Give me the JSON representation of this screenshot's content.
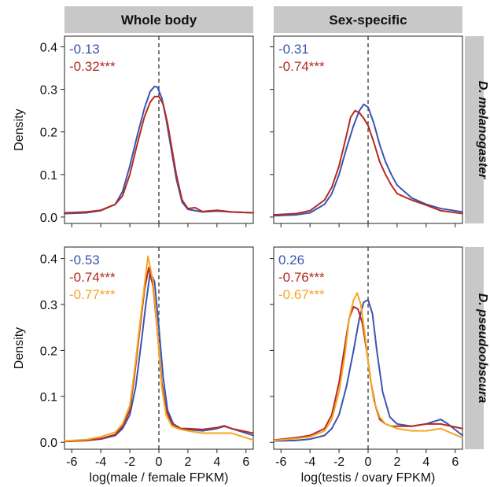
{
  "colors": {
    "strip_fill": "#c8c8c8",
    "blue": "#3a55b0",
    "red": "#b52a1f",
    "orange": "#f5a623",
    "zero_line": "#333333"
  },
  "column_strips": [
    "Whole body",
    "Sex-specific"
  ],
  "row_strips": [
    "D. melanogaster",
    "D. pseudoobscura"
  ],
  "xlabels": [
    "log(male / female FPKM)",
    "log(testis / ovary FPKM)"
  ],
  "ylabel": "Density",
  "chart_data": [
    {
      "type": "line",
      "panel": "D. melanogaster / Whole body",
      "xlim": [
        -6.5,
        6.5
      ],
      "ylim": [
        -0.015,
        0.425
      ],
      "xticks": [
        -6,
        -4,
        -2,
        0,
        2,
        4,
        6
      ],
      "yticks": [
        0.0,
        0.1,
        0.2,
        0.3,
        0.4
      ],
      "vline_x": 0,
      "annotations": [
        {
          "text": "-0.13",
          "color": "#3a55b0"
        },
        {
          "text": "-0.32***",
          "color": "#b52a1f"
        }
      ],
      "series": [
        {
          "color": "#3a55b0",
          "x": [
            -6.5,
            -5,
            -4,
            -3,
            -2.5,
            -2,
            -1.5,
            -1,
            -0.6,
            -0.3,
            -0.1,
            0.2,
            0.5,
            0.8,
            1.2,
            1.6,
            2,
            2.5,
            3,
            4,
            5,
            6.5
          ],
          "y": [
            0.008,
            0.01,
            0.015,
            0.03,
            0.06,
            0.12,
            0.19,
            0.255,
            0.295,
            0.307,
            0.305,
            0.28,
            0.23,
            0.17,
            0.09,
            0.035,
            0.018,
            0.015,
            0.012,
            0.014,
            0.012,
            0.01
          ]
        },
        {
          "color": "#b52a1f",
          "x": [
            -6.5,
            -5,
            -4,
            -3,
            -2.5,
            -2,
            -1.5,
            -1,
            -0.6,
            -0.3,
            0,
            0.3,
            0.6,
            0.9,
            1.2,
            1.6,
            2,
            2.5,
            3,
            4,
            5,
            6.5
          ],
          "y": [
            0.01,
            0.012,
            0.016,
            0.03,
            0.05,
            0.1,
            0.17,
            0.235,
            0.27,
            0.283,
            0.283,
            0.265,
            0.22,
            0.16,
            0.1,
            0.04,
            0.02,
            0.022,
            0.013,
            0.016,
            0.012,
            0.01
          ]
        }
      ]
    },
    {
      "type": "line",
      "panel": "D. melanogaster / Sex-specific",
      "xlim": [
        -6.5,
        6.5
      ],
      "ylim": [
        -0.015,
        0.425
      ],
      "xticks": [
        -6,
        -4,
        -2,
        0,
        2,
        4,
        6
      ],
      "yticks": [
        0.0,
        0.1,
        0.2,
        0.3,
        0.4
      ],
      "vline_x": 0,
      "annotations": [
        {
          "text": "-0.31",
          "color": "#3a55b0"
        },
        {
          "text": "-0.74***",
          "color": "#b52a1f"
        }
      ],
      "series": [
        {
          "color": "#3a55b0",
          "x": [
            -6.5,
            -5,
            -4,
            -3,
            -2.5,
            -2,
            -1.5,
            -1,
            -0.6,
            -0.3,
            0,
            0.4,
            0.8,
            1.2,
            1.6,
            2,
            3,
            4,
            5,
            6.5
          ],
          "y": [
            0.003,
            0.005,
            0.01,
            0.03,
            0.055,
            0.1,
            0.16,
            0.215,
            0.25,
            0.265,
            0.258,
            0.22,
            0.17,
            0.13,
            0.1,
            0.075,
            0.045,
            0.03,
            0.02,
            0.012
          ]
        },
        {
          "color": "#b52a1f",
          "x": [
            -6.5,
            -5,
            -4,
            -3,
            -2.5,
            -2,
            -1.5,
            -1.2,
            -0.9,
            -0.6,
            -0.3,
            0,
            0.4,
            0.8,
            1.2,
            1.6,
            2,
            3,
            4,
            5,
            6.5
          ],
          "y": [
            0.005,
            0.008,
            0.015,
            0.04,
            0.07,
            0.12,
            0.19,
            0.235,
            0.25,
            0.245,
            0.232,
            0.215,
            0.175,
            0.13,
            0.1,
            0.075,
            0.055,
            0.04,
            0.028,
            0.015,
            0.008
          ]
        }
      ]
    },
    {
      "type": "line",
      "panel": "D. pseudoobscura / Whole body",
      "xlim": [
        -6.5,
        6.5
      ],
      "ylim": [
        -0.015,
        0.425
      ],
      "xticks": [
        -6,
        -4,
        -2,
        0,
        2,
        4,
        6
      ],
      "yticks": [
        0.0,
        0.1,
        0.2,
        0.3,
        0.4
      ],
      "vline_x": 0,
      "annotations": [
        {
          "text": "-0.53",
          "color": "#3a55b0"
        },
        {
          "text": "-0.74***",
          "color": "#b52a1f"
        },
        {
          "text": "-0.77***",
          "color": "#f5a623"
        }
      ],
      "series": [
        {
          "color": "#3a55b0",
          "x": [
            -6.5,
            -5,
            -4,
            -3,
            -2.5,
            -2,
            -1.6,
            -1.2,
            -0.9,
            -0.6,
            -0.3,
            0,
            0.3,
            0.6,
            1,
            1.5,
            2,
            3,
            4,
            4.5,
            5,
            6.5
          ],
          "y": [
            0.002,
            0.004,
            0.007,
            0.015,
            0.03,
            0.06,
            0.12,
            0.22,
            0.3,
            0.37,
            0.35,
            0.25,
            0.14,
            0.07,
            0.04,
            0.03,
            0.028,
            0.025,
            0.03,
            0.035,
            0.03,
            0.015
          ]
        },
        {
          "color": "#b52a1f",
          "x": [
            -6.5,
            -5,
            -4,
            -3,
            -2.5,
            -2,
            -1.7,
            -1.3,
            -1,
            -0.7,
            -0.4,
            -0.1,
            0.2,
            0.5,
            0.9,
            1.5,
            2,
            3,
            4,
            4.5,
            5,
            6.5
          ],
          "y": [
            0.002,
            0.004,
            0.008,
            0.017,
            0.035,
            0.07,
            0.14,
            0.25,
            0.33,
            0.38,
            0.34,
            0.24,
            0.13,
            0.07,
            0.04,
            0.03,
            0.03,
            0.028,
            0.032,
            0.036,
            0.03,
            0.02
          ]
        },
        {
          "color": "#f5a623",
          "x": [
            -6.5,
            -5,
            -4,
            -3,
            -2.5,
            -2,
            -1.7,
            -1.3,
            -1,
            -0.75,
            -0.4,
            -0.1,
            0.2,
            0.5,
            0.9,
            1.5,
            2,
            3,
            4,
            5,
            6.5
          ],
          "y": [
            0.003,
            0.006,
            0.012,
            0.022,
            0.04,
            0.08,
            0.15,
            0.26,
            0.34,
            0.405,
            0.35,
            0.24,
            0.12,
            0.06,
            0.035,
            0.028,
            0.025,
            0.02,
            0.02,
            0.02,
            0.005
          ]
        }
      ]
    },
    {
      "type": "line",
      "panel": "D. pseudoobscura / Sex-specific",
      "xlim": [
        -6.5,
        6.5
      ],
      "ylim": [
        -0.015,
        0.425
      ],
      "xticks": [
        -6,
        -4,
        -2,
        0,
        2,
        4,
        6
      ],
      "yticks": [
        0.0,
        0.1,
        0.2,
        0.3,
        0.4
      ],
      "vline_x": 0,
      "annotations": [
        {
          "text": "0.26",
          "color": "#3a55b0"
        },
        {
          "text": "-0.76***",
          "color": "#b52a1f"
        },
        {
          "text": "-0.67***",
          "color": "#f5a623"
        }
      ],
      "series": [
        {
          "color": "#3a55b0",
          "x": [
            -6.5,
            -5,
            -4,
            -3,
            -2.5,
            -2,
            -1.5,
            -1,
            -0.6,
            -0.3,
            0,
            0.3,
            0.6,
            1,
            1.5,
            2,
            3,
            4,
            4.5,
            5,
            5.5,
            6.5
          ],
          "y": [
            0.003,
            0.004,
            0.007,
            0.015,
            0.03,
            0.06,
            0.12,
            0.2,
            0.27,
            0.305,
            0.31,
            0.28,
            0.2,
            0.11,
            0.055,
            0.04,
            0.035,
            0.04,
            0.045,
            0.05,
            0.04,
            0.015
          ]
        },
        {
          "color": "#b52a1f",
          "x": [
            -6.5,
            -5,
            -4,
            -3,
            -2.5,
            -2,
            -1.6,
            -1.3,
            -1,
            -0.7,
            -0.4,
            -0.1,
            0.2,
            0.5,
            0.8,
            1.2,
            1.6,
            2,
            3,
            4,
            5,
            6.5
          ],
          "y": [
            0.005,
            0.01,
            0.015,
            0.03,
            0.06,
            0.13,
            0.21,
            0.27,
            0.295,
            0.29,
            0.26,
            0.2,
            0.13,
            0.08,
            0.05,
            0.04,
            0.035,
            0.035,
            0.035,
            0.04,
            0.04,
            0.03
          ]
        },
        {
          "color": "#f5a623",
          "x": [
            -6.5,
            -5,
            -4,
            -3,
            -2.5,
            -2,
            -1.6,
            -1.3,
            -1,
            -0.75,
            -0.5,
            -0.2,
            0.1,
            0.4,
            0.8,
            1.2,
            1.6,
            2,
            3,
            4,
            5,
            6.5
          ],
          "y": [
            0.004,
            0.008,
            0.012,
            0.025,
            0.05,
            0.11,
            0.19,
            0.27,
            0.31,
            0.325,
            0.3,
            0.23,
            0.15,
            0.09,
            0.055,
            0.04,
            0.035,
            0.03,
            0.025,
            0.025,
            0.03,
            0.01
          ]
        }
      ]
    }
  ]
}
